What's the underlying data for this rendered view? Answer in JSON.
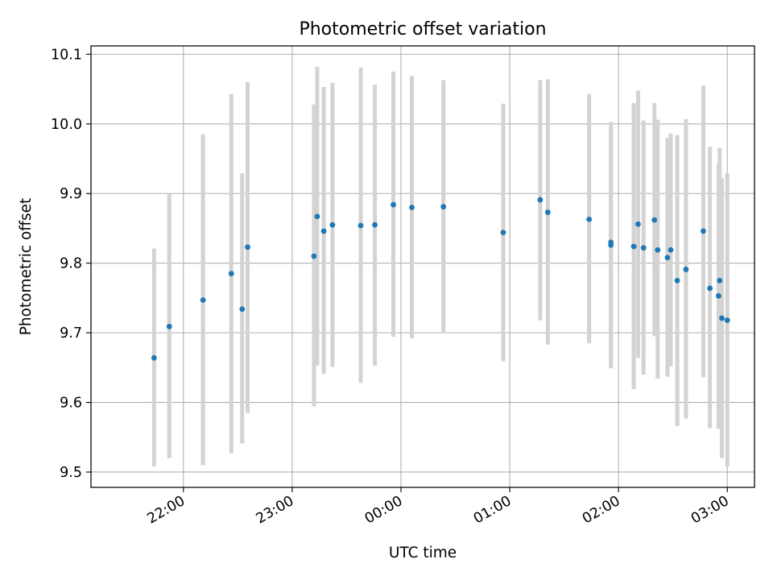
{
  "chart_data": {
    "type": "scatter",
    "title": "Photometric offset variation",
    "xlabel": "UTC time",
    "ylabel": "Photometric offset",
    "x_unit": "UTC time (hours; values past 24 denote the following day, e.g. 26.5 = 02:30)",
    "xlim": [
      21.15,
      27.25
    ],
    "ylim": [
      9.478,
      10.112
    ],
    "x_ticks": [
      {
        "value": 22,
        "label": "22:00"
      },
      {
        "value": 23,
        "label": "23:00"
      },
      {
        "value": 24,
        "label": "00:00"
      },
      {
        "value": 25,
        "label": "01:00"
      },
      {
        "value": 26,
        "label": "02:00"
      },
      {
        "value": 27,
        "label": "03:00"
      }
    ],
    "y_ticks": [
      {
        "value": 9.5,
        "label": "9.5"
      },
      {
        "value": 9.6,
        "label": "9.6"
      },
      {
        "value": 9.7,
        "label": "9.7"
      },
      {
        "value": 9.8,
        "label": "9.8"
      },
      {
        "value": 9.9,
        "label": "9.9"
      },
      {
        "value": 10.0,
        "label": "10.0"
      },
      {
        "value": 10.1,
        "label": "10.1"
      }
    ],
    "grid": true,
    "colors": {
      "point": "#1f77b4",
      "errorbar": "#d3d3d3",
      "grid": "#b0b0b0"
    },
    "points": [
      {
        "x": 21.73,
        "y": 9.664,
        "lo": 9.508,
        "hi": 9.821
      },
      {
        "x": 21.87,
        "y": 9.709,
        "lo": 9.52,
        "hi": 9.899
      },
      {
        "x": 22.18,
        "y": 9.747,
        "lo": 9.51,
        "hi": 9.985
      },
      {
        "x": 22.44,
        "y": 9.785,
        "lo": 9.527,
        "hi": 10.043
      },
      {
        "x": 22.54,
        "y": 9.734,
        "lo": 9.541,
        "hi": 9.929
      },
      {
        "x": 22.59,
        "y": 9.823,
        "lo": 9.585,
        "hi": 10.06
      },
      {
        "x": 23.2,
        "y": 9.81,
        "lo": 9.594,
        "hi": 10.028
      },
      {
        "x": 23.23,
        "y": 9.867,
        "lo": 9.653,
        "hi": 10.082
      },
      {
        "x": 23.29,
        "y": 9.846,
        "lo": 9.641,
        "hi": 10.053
      },
      {
        "x": 23.37,
        "y": 9.855,
        "lo": 9.651,
        "hi": 10.059
      },
      {
        "x": 23.63,
        "y": 9.854,
        "lo": 9.628,
        "hi": 10.081
      },
      {
        "x": 23.76,
        "y": 9.855,
        "lo": 9.653,
        "hi": 10.056
      },
      {
        "x": 23.93,
        "y": 9.884,
        "lo": 9.694,
        "hi": 10.075
      },
      {
        "x": 24.1,
        "y": 9.88,
        "lo": 9.692,
        "hi": 10.069
      },
      {
        "x": 24.39,
        "y": 9.881,
        "lo": 9.699,
        "hi": 10.063
      },
      {
        "x": 24.94,
        "y": 9.844,
        "lo": 9.659,
        "hi": 10.029
      },
      {
        "x": 25.28,
        "y": 9.891,
        "lo": 9.718,
        "hi": 10.063
      },
      {
        "x": 25.35,
        "y": 9.873,
        "lo": 9.683,
        "hi": 10.064
      },
      {
        "x": 25.73,
        "y": 9.863,
        "lo": 9.685,
        "hi": 10.043
      },
      {
        "x": 25.93,
        "y": 9.83,
        "lo": 9.649,
        "hi": 10.003
      },
      {
        "x": 25.93,
        "y": 9.826,
        "lo": 9.663,
        "hi": 9.99
      },
      {
        "x": 26.14,
        "y": 9.824,
        "lo": 9.619,
        "hi": 10.03
      },
      {
        "x": 26.18,
        "y": 9.856,
        "lo": 9.664,
        "hi": 10.048
      },
      {
        "x": 26.23,
        "y": 9.822,
        "lo": 9.64,
        "hi": 10.005
      },
      {
        "x": 26.33,
        "y": 9.862,
        "lo": 9.695,
        "hi": 10.03
      },
      {
        "x": 26.36,
        "y": 9.819,
        "lo": 9.634,
        "hi": 10.006
      },
      {
        "x": 26.45,
        "y": 9.808,
        "lo": 9.637,
        "hi": 9.98
      },
      {
        "x": 26.48,
        "y": 9.819,
        "lo": 9.652,
        "hi": 9.986
      },
      {
        "x": 26.54,
        "y": 9.775,
        "lo": 9.566,
        "hi": 9.984
      },
      {
        "x": 26.62,
        "y": 9.791,
        "lo": 9.577,
        "hi": 10.007
      },
      {
        "x": 26.78,
        "y": 9.846,
        "lo": 9.636,
        "hi": 10.055
      },
      {
        "x": 26.84,
        "y": 9.764,
        "lo": 9.563,
        "hi": 9.967
      },
      {
        "x": 26.92,
        "y": 9.753,
        "lo": 9.562,
        "hi": 9.943
      },
      {
        "x": 26.93,
        "y": 9.775,
        "lo": 9.583,
        "hi": 9.966
      },
      {
        "x": 26.95,
        "y": 9.721,
        "lo": 9.52,
        "hi": 9.922
      },
      {
        "x": 27.0,
        "y": 9.718,
        "lo": 9.508,
        "hi": 9.929
      }
    ]
  }
}
